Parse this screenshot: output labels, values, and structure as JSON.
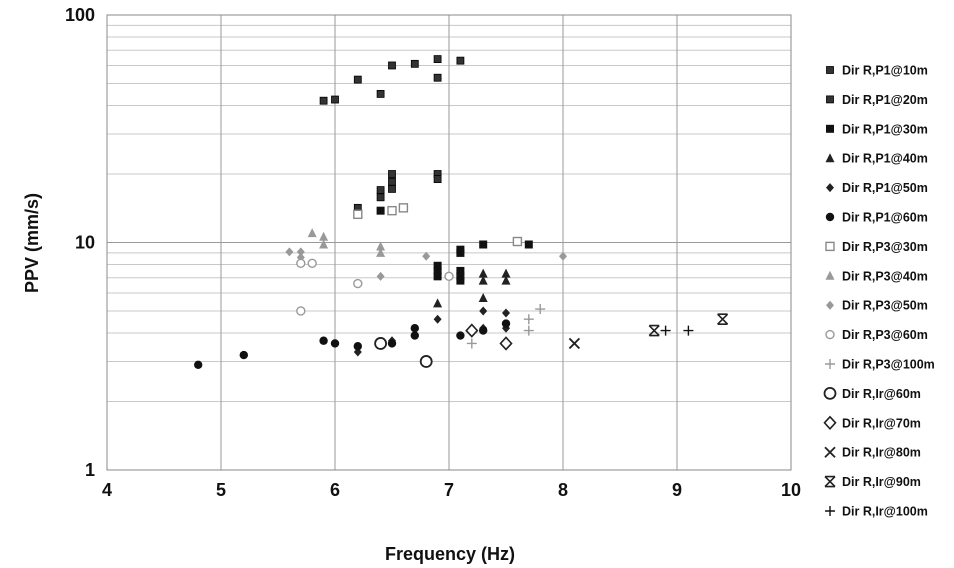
{
  "chart_data": {
    "type": "scatter",
    "xlabel": "Frequency (Hz)",
    "ylabel": "PPV (mm/s)",
    "xlim": [
      4,
      10
    ],
    "ylim": [
      1,
      100
    ],
    "yscale": "log",
    "grid": "on",
    "legend_position": "right",
    "xticks": [
      "4",
      "5",
      "6",
      "7",
      "8",
      "9",
      "10"
    ],
    "yticks": [
      {
        "value": 1,
        "label": "1"
      },
      {
        "value": 10,
        "label": "10"
      },
      {
        "value": 100,
        "label": "100"
      }
    ],
    "series": [
      {
        "name": "Dir R,P1@10m",
        "marker": "small-square",
        "color": "#333333",
        "points": [
          [
            5.9,
            42
          ],
          [
            6.2,
            52
          ],
          [
            6.4,
            45
          ],
          [
            6.5,
            60
          ],
          [
            6.7,
            61
          ],
          [
            6.9,
            64
          ],
          [
            6.9,
            53
          ]
        ]
      },
      {
        "name": "Dir R,P1@20m",
        "marker": "small-square",
        "color": "#333333",
        "points": [
          [
            6.0,
            42.5
          ],
          [
            6.2,
            14.2
          ],
          [
            6.4,
            17
          ],
          [
            6.4,
            15.8
          ],
          [
            6.5,
            20
          ],
          [
            6.5,
            18.5
          ],
          [
            6.5,
            17.2
          ],
          [
            6.9,
            20
          ],
          [
            6.9,
            19
          ],
          [
            7.1,
            63
          ]
        ]
      },
      {
        "name": "Dir R,P1@30m",
        "marker": "square",
        "color": "#111111",
        "points": [
          [
            6.4,
            13.8
          ],
          [
            6.9,
            7.9
          ],
          [
            6.9,
            7.5
          ],
          [
            6.9,
            7.1
          ],
          [
            7.1,
            9.3
          ],
          [
            7.1,
            9.0
          ],
          [
            7.1,
            7.5
          ],
          [
            7.1,
            7.1
          ],
          [
            7.1,
            6.8
          ],
          [
            7.3,
            9.8
          ],
          [
            7.7,
            9.8
          ]
        ]
      },
      {
        "name": "Dir R,P1@40m",
        "marker": "triangle",
        "color": "#222222",
        "points": [
          [
            6.9,
            5.4
          ],
          [
            7.3,
            5.7
          ],
          [
            7.3,
            7.3
          ],
          [
            7.3,
            6.8
          ],
          [
            7.5,
            7.3
          ],
          [
            7.5,
            6.8
          ]
        ]
      },
      {
        "name": "Dir R,P1@50m",
        "marker": "diamond",
        "color": "#222222",
        "points": [
          [
            6.2,
            3.3
          ],
          [
            6.5,
            3.7
          ],
          [
            6.9,
            4.6
          ],
          [
            7.3,
            4.2
          ],
          [
            7.3,
            5.0
          ],
          [
            7.5,
            4.9
          ],
          [
            7.5,
            4.2
          ]
        ]
      },
      {
        "name": "Dir R,P1@60m",
        "marker": "circle",
        "color": "#111111",
        "points": [
          [
            4.8,
            2.9
          ],
          [
            5.2,
            3.2
          ],
          [
            5.9,
            3.7
          ],
          [
            6.0,
            3.6
          ],
          [
            6.2,
            3.5
          ],
          [
            6.5,
            3.6
          ],
          [
            6.7,
            3.9
          ],
          [
            6.7,
            4.2
          ],
          [
            7.1,
            3.9
          ],
          [
            7.3,
            4.1
          ],
          [
            7.5,
            4.4
          ]
        ]
      },
      {
        "name": "Dir R,P3@30m",
        "marker": "open-square",
        "color": "#888888",
        "points": [
          [
            6.2,
            13.3
          ],
          [
            6.5,
            13.8
          ],
          [
            6.6,
            14.2
          ],
          [
            7.6,
            10.1
          ]
        ]
      },
      {
        "name": "Dir R,P3@40m",
        "marker": "triangle",
        "color": "#999999",
        "points": [
          [
            5.8,
            11
          ],
          [
            5.9,
            10.6
          ],
          [
            5.9,
            9.8
          ],
          [
            6.4,
            9.6
          ],
          [
            6.4,
            9.0
          ]
        ]
      },
      {
        "name": "Dir R,P3@50m",
        "marker": "diamond",
        "color": "#999999",
        "points": [
          [
            5.6,
            9.1
          ],
          [
            5.7,
            9.1
          ],
          [
            5.7,
            8.6
          ],
          [
            6.4,
            7.1
          ],
          [
            6.8,
            8.7
          ],
          [
            8.0,
            8.7
          ]
        ]
      },
      {
        "name": "Dir R,P3@60m",
        "marker": "open-circle",
        "color": "#999999",
        "points": [
          [
            5.7,
            8.1
          ],
          [
            5.8,
            8.1
          ],
          [
            6.2,
            6.6
          ],
          [
            7.0,
            7.1
          ],
          [
            5.7,
            5.0
          ]
        ]
      },
      {
        "name": "Dir R,P3@100m",
        "marker": "plus",
        "color": "#999999",
        "points": [
          [
            7.2,
            3.6
          ],
          [
            7.7,
            4.1
          ],
          [
            7.7,
            4.6
          ],
          [
            7.8,
            5.1
          ]
        ]
      },
      {
        "name": "Dir R,Ir@60m",
        "marker": "open-circle-large",
        "color": "#222222",
        "points": [
          [
            6.4,
            3.6
          ],
          [
            6.8,
            3.0
          ]
        ]
      },
      {
        "name": "Dir R,Ir@70m",
        "marker": "open-diamond",
        "color": "#222222",
        "points": [
          [
            7.2,
            4.1
          ],
          [
            7.5,
            3.6
          ]
        ]
      },
      {
        "name": "Dir R,Ir@80m",
        "marker": "x",
        "color": "#222222",
        "points": [
          [
            8.1,
            3.6
          ]
        ]
      },
      {
        "name": "Dir R,Ir@90m",
        "marker": "asterisk",
        "color": "#222222",
        "points": [
          [
            8.8,
            4.1
          ],
          [
            9.4,
            4.6
          ]
        ]
      },
      {
        "name": "Dir R,Ir@100m",
        "marker": "plus",
        "color": "#111111",
        "points": [
          [
            8.9,
            4.1
          ],
          [
            9.1,
            4.1
          ]
        ]
      }
    ]
  }
}
